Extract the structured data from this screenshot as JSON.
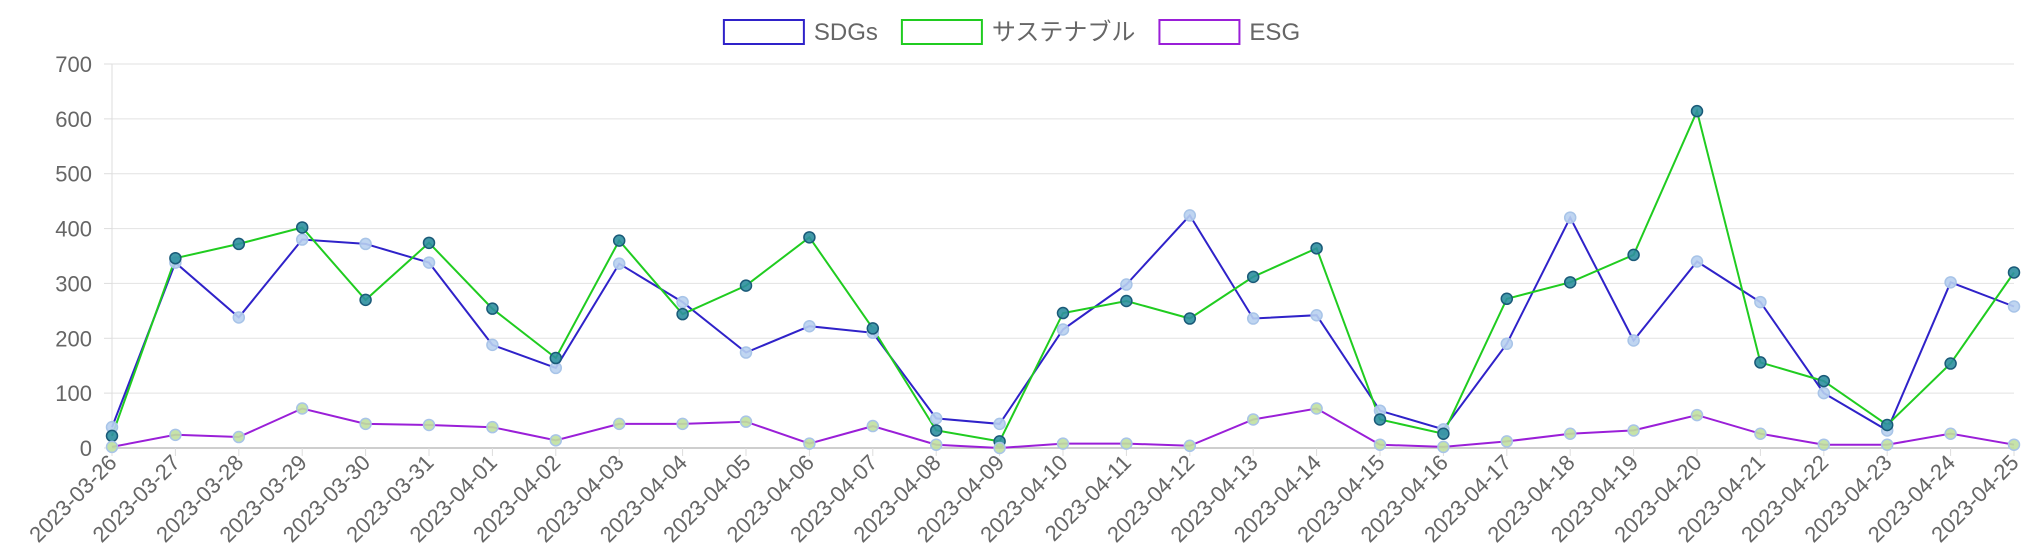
{
  "chart_data": {
    "type": "line",
    "title": "",
    "xlabel": "",
    "ylabel": "",
    "ylim": [
      0,
      700
    ],
    "yticks": [
      0,
      100,
      200,
      300,
      400,
      500,
      600,
      700
    ],
    "grid": true,
    "legend_position": "top-center",
    "categories": [
      "2023-03-26",
      "2023-03-27",
      "2023-03-28",
      "2023-03-29",
      "2023-03-30",
      "2023-03-31",
      "2023-04-01",
      "2023-04-02",
      "2023-04-03",
      "2023-04-04",
      "2023-04-05",
      "2023-04-06",
      "2023-04-07",
      "2023-04-08",
      "2023-04-09",
      "2023-04-10",
      "2023-04-11",
      "2023-04-12",
      "2023-04-13",
      "2023-04-14",
      "2023-04-15",
      "2023-04-16",
      "2023-04-17",
      "2023-04-18",
      "2023-04-19",
      "2023-04-20",
      "2023-04-21",
      "2023-04-22",
      "2023-04-23",
      "2023-04-24",
      "2023-04-25"
    ],
    "series": [
      {
        "name": "SDGs",
        "color": "#2f22c9",
        "point_color": "#b8d0f0",
        "values": [
          38,
          338,
          238,
          380,
          372,
          338,
          188,
          146,
          336,
          266,
          174,
          222,
          210,
          54,
          44,
          216,
          298,
          424,
          236,
          242,
          68,
          34,
          190,
          420,
          196,
          340,
          266,
          100,
          32,
          302,
          258
        ]
      },
      {
        "name": "サステナブル",
        "color": "#20cc20",
        "point_color": "#2e8fa0",
        "values": [
          22,
          346,
          372,
          402,
          270,
          374,
          254,
          164,
          378,
          244,
          296,
          384,
          218,
          32,
          12,
          246,
          268,
          236,
          312,
          364,
          52,
          26,
          272,
          302,
          352,
          614,
          156,
          122,
          42,
          154,
          320
        ]
      },
      {
        "name": "ESG",
        "color": "#9a1fd8",
        "point_color": "#c0e0a0",
        "values": [
          2,
          24,
          20,
          72,
          44,
          42,
          38,
          14,
          44,
          44,
          48,
          8,
          40,
          6,
          0,
          8,
          8,
          4,
          52,
          72,
          6,
          2,
          12,
          26,
          32,
          60,
          26,
          6,
          6,
          26,
          6
        ]
      }
    ]
  }
}
